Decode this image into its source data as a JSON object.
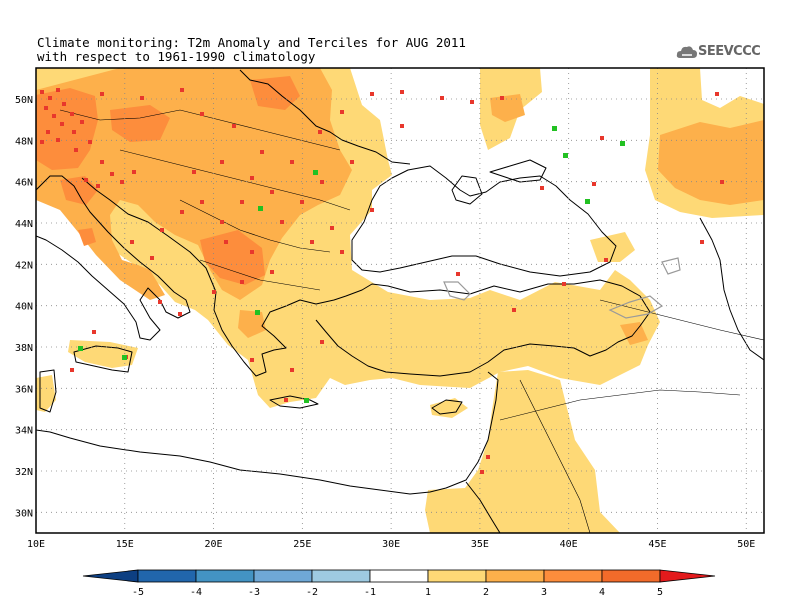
{
  "title": {
    "line1": "Climate monitoring: T2m Anomaly and Terciles for AUG 2011",
    "line2": "with respect to 1961-1990 climatology"
  },
  "logo": {
    "text": "SEEVCCC",
    "icon": "cloud-icon"
  },
  "map": {
    "lon_range": [
      10,
      51
    ],
    "lat_range": [
      29,
      51.5
    ],
    "lon_ticks": [
      "10E",
      "15E",
      "20E",
      "25E",
      "30E",
      "35E",
      "40E",
      "45E",
      "50E"
    ],
    "lat_ticks": [
      "30N",
      "32N",
      "34N",
      "36N",
      "38N",
      "40N",
      "42N",
      "44N",
      "46N",
      "48N",
      "50N"
    ],
    "grid": "dotted"
  },
  "colorbar": {
    "labels": [
      "-5",
      "-4",
      "-3",
      "-2",
      "-1",
      "1",
      "2",
      "3",
      "4",
      "5"
    ],
    "colors": [
      "#0d3f82",
      "#2166ac",
      "#4393c3",
      "#6fa8d6",
      "#9ecae1",
      "#ffffff",
      "#fed976",
      "#fdb04b",
      "#fd8d3c",
      "#f26b2a",
      "#e31a1c"
    ]
  },
  "legend_colors": {
    "upper_tercile_marker": "#e8372c",
    "lower_tercile_marker": "#22c122",
    "anomaly_1_2": "#fed976",
    "anomaly_2_3": "#fdb04b",
    "anomaly_3_4": "#fd8d3c"
  }
}
